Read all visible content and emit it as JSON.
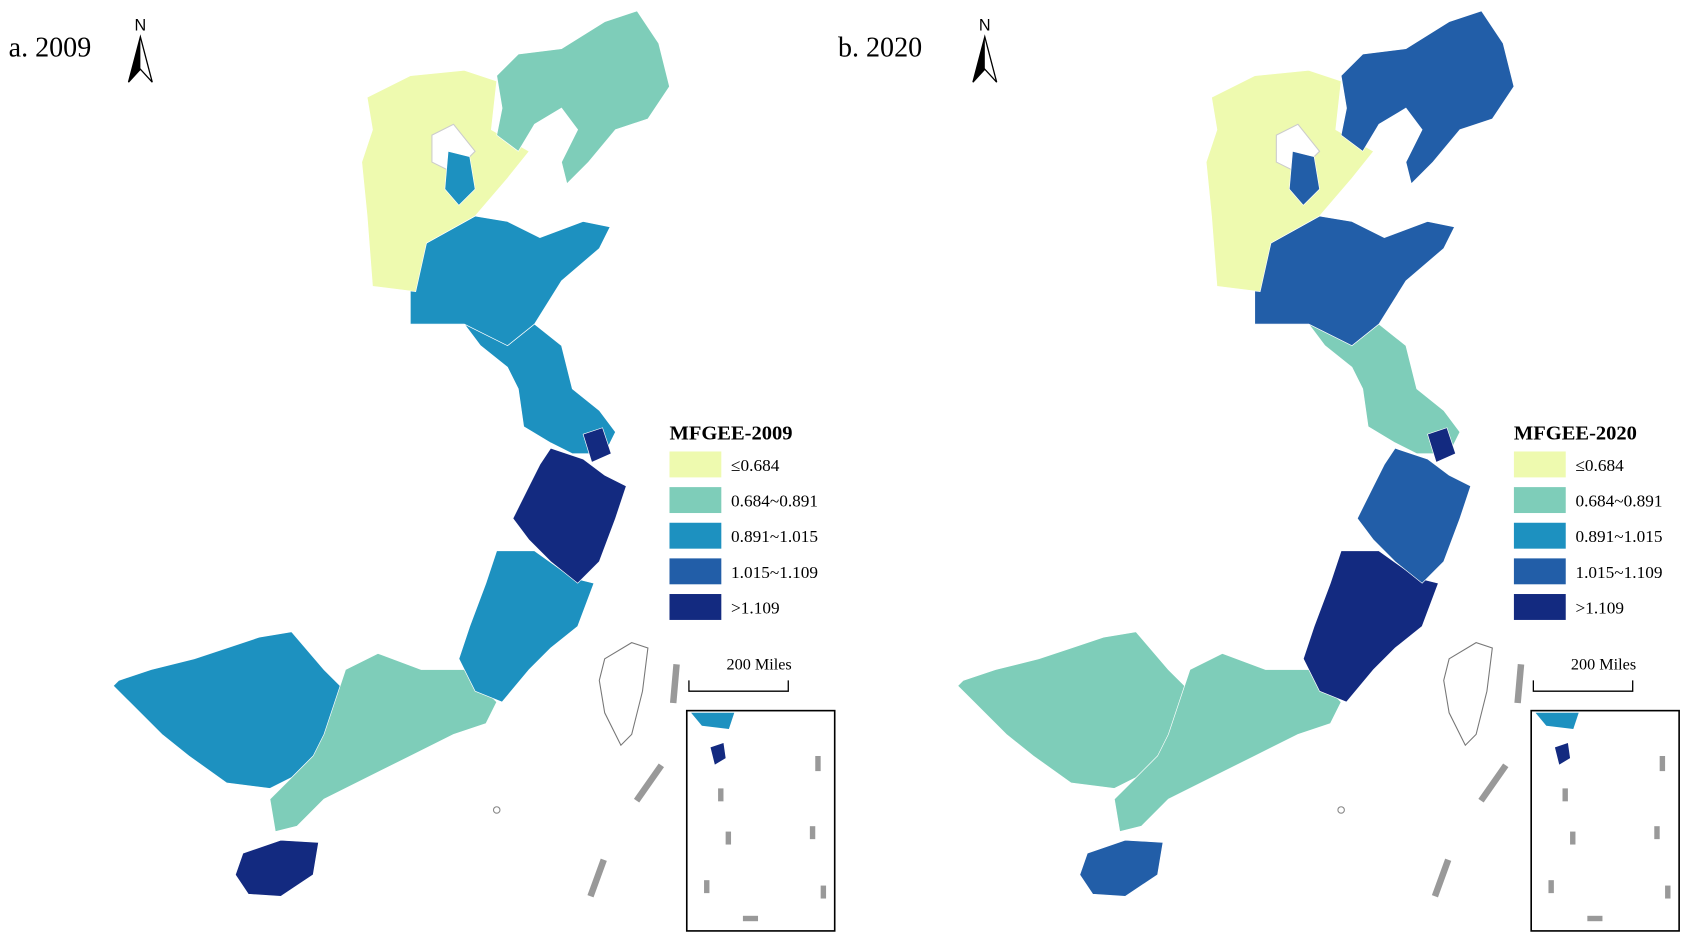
{
  "panels": [
    {
      "label": "a. 2009",
      "north": "N",
      "scale": "200 Miles",
      "legend": {
        "title": "MFGEE-2009",
        "items": [
          {
            "label": "≤0.684",
            "color": "#eefaaf"
          },
          {
            "label": "0.684~0.891",
            "color": "#7ecdb9"
          },
          {
            "label": "0.891~1.015",
            "color": "#1d91c0"
          },
          {
            "label": "1.015~1.109",
            "color": "#225ea8"
          },
          {
            "label": ">1.109",
            "color": "#132a80"
          }
        ]
      }
    },
    {
      "label": "b. 2020",
      "north": "N",
      "scale": "200 Miles",
      "legend": {
        "title": "MFGEE-2020",
        "items": [
          {
            "label": "≤0.684",
            "color": "#eefaaf"
          },
          {
            "label": "0.684~0.891",
            "color": "#7ecdb9"
          },
          {
            "label": "0.891~1.015",
            "color": "#1d91c0"
          },
          {
            "label": "1.015~1.109",
            "color": "#225ea8"
          },
          {
            "label": ">1.109",
            "color": "#132a80"
          }
        ]
      }
    }
  ]
}
